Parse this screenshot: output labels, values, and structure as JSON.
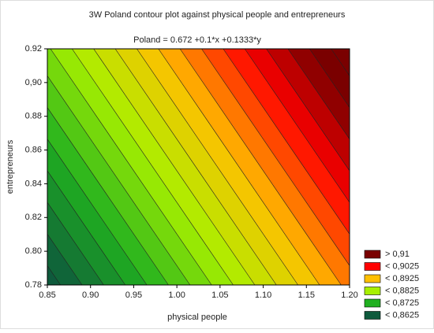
{
  "chart_data": {
    "type": "contour",
    "title": "3W Poland contour plot against physical people and entrepreneurs",
    "subtitle": "Poland = 0.672 +0.1*x +0.1333*y",
    "x_label": "physical people",
    "y_label": "entrepreneurs",
    "formula": {
      "intercept": 0.672,
      "x": 0.1,
      "y": 0.1333
    },
    "xlim": [
      0.85,
      1.2
    ],
    "xticks": [
      0.85,
      {
        "value": 0.9,
        "label": "0.90"
      },
      0.95,
      {
        "value": 1.0,
        "label": "1.00"
      },
      1.05,
      {
        "value": 1.1,
        "label": "1.10"
      },
      1.15,
      {
        "value": 1.2,
        "label": "1.20"
      }
    ],
    "ylim": [
      0.78,
      0.92
    ],
    "yticks": [
      0.78,
      {
        "value": 0.8,
        "label": "0.80"
      },
      0.82,
      0.84,
      0.86,
      0.88,
      {
        "value": 0.9,
        "label": "0,90"
      },
      0.92
    ],
    "levels": [
      0.8625,
      0.865,
      0.8675,
      0.87,
      0.8725,
      0.875,
      0.8775,
      0.88,
      0.8825,
      0.885,
      0.8875,
      0.89,
      0.8925,
      0.895,
      0.8975,
      0.9,
      0.9025,
      0.905,
      0.9075,
      0.91,
      0.9125
    ],
    "legend": [
      {
        "value": 0.91,
        "label": "> 0,91",
        "color": "#7a0000"
      },
      {
        "value": 0.9025,
        "label": "< 0,9025",
        "color": "#ff0000"
      },
      {
        "value": 0.8925,
        "label": "< 0,8925",
        "color": "#ffc000"
      },
      {
        "value": 0.8825,
        "label": "< 0,8825",
        "color": "#a8f000"
      },
      {
        "value": 0.8725,
        "label": "< 0,8725",
        "color": "#20b020"
      },
      {
        "value": 0.8625,
        "label": "< 0,8625",
        "color": "#0e5a3c"
      }
    ]
  }
}
